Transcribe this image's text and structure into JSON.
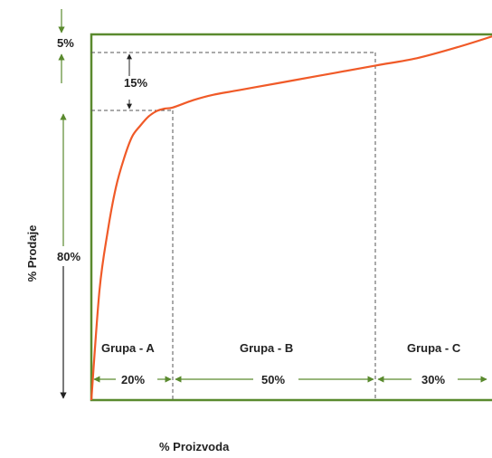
{
  "chart_data": {
    "type": "line",
    "title": "",
    "xlabel": "% Proizvoda",
    "ylabel": "% Prodaje",
    "xlim": [
      0,
      100
    ],
    "ylim": [
      0,
      100
    ],
    "series": [
      {
        "x": [
          0,
          2,
          4,
          6,
          8,
          10,
          12,
          14,
          16,
          18,
          20,
          25,
          30,
          35,
          40,
          50,
          60,
          70,
          80,
          90,
          100
        ],
        "y": [
          0,
          30,
          46,
          58,
          66,
          72,
          75,
          77.5,
          79,
          79.7,
          80,
          82,
          83.5,
          84.5,
          85.5,
          87.5,
          89.5,
          91.5,
          93.5,
          96.5,
          100
        ]
      }
    ],
    "annotations": {
      "top_label": "5%",
      "middle_label": "15%",
      "bottom_label": "80%"
    },
    "groups": [
      {
        "name": "Grupa - A",
        "share": "20%"
      },
      {
        "name": "Grupa - B",
        "share": "50%"
      },
      {
        "name": "Grupa - C",
        "share": "30%"
      }
    ],
    "colors": {
      "curve": "#f05a28",
      "frame": "#5a8a2e",
      "arrow_green": "#5a8a2e",
      "arrow_dark": "#222222",
      "dashed": "#555555"
    }
  }
}
